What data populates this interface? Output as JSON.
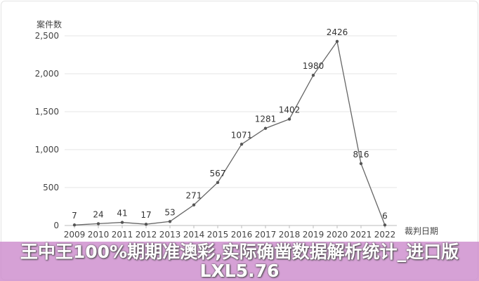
{
  "chart_data": {
    "type": "line",
    "ylabel": "案件数",
    "xlabel": "裁判日期",
    "categories": [
      "2009",
      "2010",
      "2011",
      "2012",
      "2013",
      "2014",
      "2015",
      "2016",
      "2017",
      "2018",
      "2019",
      "2020",
      "2021",
      "2022"
    ],
    "values": [
      7,
      24,
      41,
      17,
      53,
      271,
      567,
      1071,
      1281,
      1402,
      1980,
      2426,
      816,
      6
    ],
    "ylim": [
      0,
      2500
    ],
    "yticks": [
      "0",
      "500",
      "1,000",
      "1,500",
      "2,000",
      "2,500"
    ],
    "grid": true,
    "line_color": "#666666"
  },
  "banner": {
    "text": "王中王100%期期准澳彩,实际确凿数据解析统计_进口版LXL5.76",
    "color": "#d49fd4"
  }
}
